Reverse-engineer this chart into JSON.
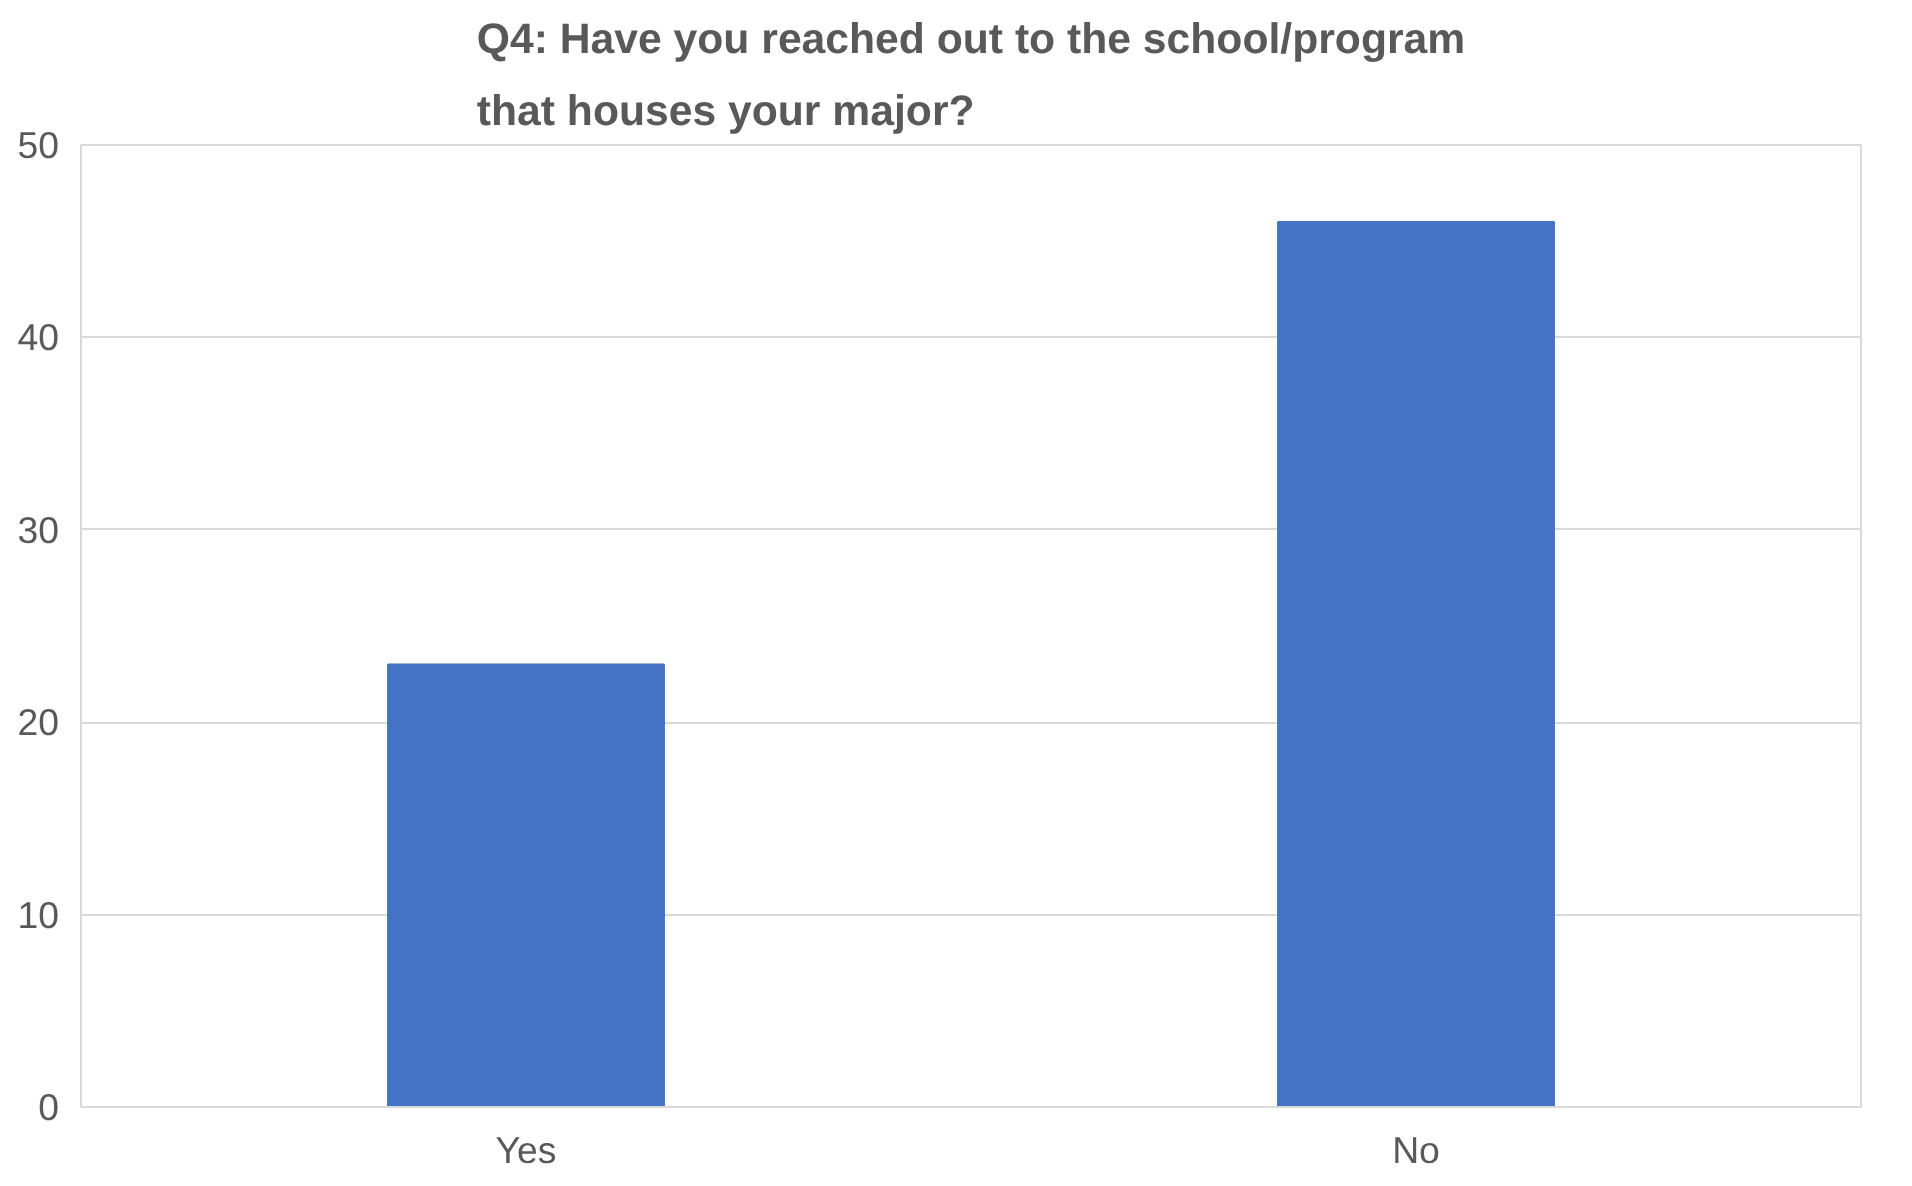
{
  "chart_data": {
    "type": "bar",
    "title": "Q4: Have you reached out to the school/program that houses your major?",
    "categories": [
      "Yes",
      "No"
    ],
    "values": [
      23,
      46
    ],
    "color": "#4472c4",
    "ylim": [
      0,
      50
    ],
    "yticks": [
      0,
      10,
      20,
      30,
      40,
      50
    ],
    "grid": "y"
  }
}
